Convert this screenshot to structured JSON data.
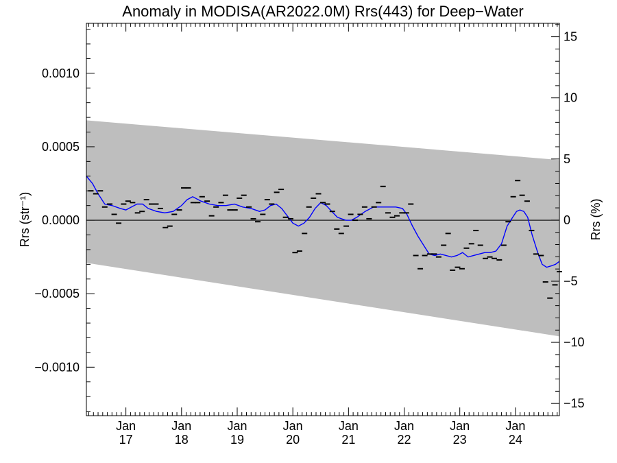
{
  "chart_data": {
    "type": "scatter",
    "title": "Anomaly in MODISA(AR2022.0M) Rrs(443) for Deep−Water",
    "ylabel_left": "Rrs (str⁻¹)",
    "ylabel_right": "Rrs (%)",
    "xlabel": "",
    "x_ticks": [
      {
        "month": "Jan",
        "year": "17",
        "x": 2017.0
      },
      {
        "month": "Jan",
        "year": "18",
        "x": 2018.0
      },
      {
        "month": "Jan",
        "year": "19",
        "x": 2019.0
      },
      {
        "month": "Jan",
        "year": "20",
        "x": 2020.0
      },
      {
        "month": "Jan",
        "year": "21",
        "x": 2021.0
      },
      {
        "month": "Jan",
        "year": "22",
        "x": 2022.0
      },
      {
        "month": "Jan",
        "year": "23",
        "x": 2023.0
      },
      {
        "month": "Jan",
        "year": "24",
        "x": 2024.0
      }
    ],
    "xlim": [
      2016.29,
      2024.79
    ],
    "ylim_left": [
      -0.00133,
      0.00134
    ],
    "ylim_right": [
      -16.0,
      16.1
    ],
    "left_ticks": [
      {
        "value": 0.001,
        "label": "0.0010"
      },
      {
        "value": 0.0005,
        "label": "0.0005"
      },
      {
        "value": 0.0,
        "label": "0.0000"
      },
      {
        "value": -0.0005,
        "label": "−0.0005"
      },
      {
        "value": -0.001,
        "label": "−0.0010"
      }
    ],
    "right_ticks": [
      {
        "value": 15,
        "label": "15"
      },
      {
        "value": 10,
        "label": "10"
      },
      {
        "value": 5,
        "label": "5"
      },
      {
        "value": 0,
        "label": "0"
      },
      {
        "value": -5,
        "label": "−5"
      },
      {
        "value": -10,
        "label": "−10"
      },
      {
        "value": -15,
        "label": "−15"
      }
    ],
    "band": {
      "upper": [
        [
          2016.29,
          0.00068
        ],
        [
          2024.79,
          0.00041
        ]
      ],
      "lower": [
        [
          2016.29,
          -0.00029
        ],
        [
          2024.79,
          -0.00079
        ]
      ],
      "color": "#bebebe"
    },
    "zero_line": 0.0,
    "monthly_points": {
      "name": "",
      "color": "#000000",
      "points": [
        [
          2016.37,
          0.0002
        ],
        [
          2016.46,
          0.00018
        ],
        [
          2016.54,
          0.0002
        ],
        [
          2016.62,
          9e-05
        ],
        [
          2016.71,
          0.00011
        ],
        [
          2016.79,
          4e-05
        ],
        [
          2016.87,
          -2e-05
        ],
        [
          2016.96,
          0.00011
        ],
        [
          2017.04,
          0.00013
        ],
        [
          2017.12,
          0.00012
        ],
        [
          2017.21,
          5e-05
        ],
        [
          2017.29,
          6e-05
        ],
        [
          2017.37,
          0.00014
        ],
        [
          2017.46,
          0.00011
        ],
        [
          2017.54,
          0.00011
        ],
        [
          2017.62,
          8e-05
        ],
        [
          2017.71,
          -5e-05
        ],
        [
          2017.79,
          -4e-05
        ],
        [
          2017.87,
          4e-05
        ],
        [
          2017.96,
          7e-05
        ],
        [
          2018.04,
          0.00022
        ],
        [
          2018.12,
          0.00022
        ],
        [
          2018.21,
          0.00012
        ],
        [
          2018.29,
          0.00012
        ],
        [
          2018.37,
          0.00016
        ],
        [
          2018.46,
          0.00013
        ],
        [
          2018.54,
          3e-05
        ],
        [
          2018.62,
          9e-05
        ],
        [
          2018.71,
          0.00012
        ],
        [
          2018.79,
          0.00017
        ],
        [
          2018.87,
          7e-05
        ],
        [
          2018.96,
          7e-05
        ],
        [
          2019.04,
          0.00015
        ],
        [
          2019.12,
          0.00017
        ],
        [
          2019.21,
          9e-05
        ],
        [
          2019.29,
          1e-05
        ],
        [
          2019.37,
          -1e-05
        ],
        [
          2019.46,
          4e-05
        ],
        [
          2019.54,
          0.00014
        ],
        [
          2019.62,
          0.00011
        ],
        [
          2019.71,
          0.00019
        ],
        [
          2019.79,
          0.00021
        ],
        [
          2019.87,
          2e-05
        ],
        [
          2019.96,
          1e-05
        ],
        [
          2020.04,
          -0.00022
        ],
        [
          2020.12,
          -0.00021
        ],
        [
          2020.21,
          -9e-05
        ],
        [
          2020.29,
          9e-05
        ],
        [
          2020.37,
          0.00015
        ],
        [
          2020.46,
          0.00018
        ],
        [
          2020.54,
          0.00012
        ],
        [
          2020.62,
          0.00011
        ],
        [
          2020.71,
          6e-05
        ],
        [
          2020.79,
          -6e-05
        ],
        [
          2020.87,
          -9e-05
        ],
        [
          2020.96,
          -4e-05
        ],
        [
          2021.04,
          4e-05
        ],
        [
          2021.12,
          0.0
        ],
        [
          2021.21,
          4e-05
        ],
        [
          2021.29,
          9e-05
        ],
        [
          2021.37,
          1e-05
        ],
        [
          2021.46,
          9e-05
        ],
        [
          2021.54,
          0.00012
        ],
        [
          2021.62,
          0.00023
        ],
        [
          2021.71,
          5e-05
        ],
        [
          2021.79,
          2e-05
        ],
        [
          2021.87,
          3e-05
        ],
        [
          2021.96,
          5e-05
        ],
        [
          2022.04,
          5e-05
        ],
        [
          2022.12,
          0.00011
        ],
        [
          2022.21,
          -0.00024
        ],
        [
          2022.29,
          -0.00033
        ],
        [
          2022.37,
          -0.00024
        ],
        [
          2022.46,
          -0.00023
        ],
        [
          2022.54,
          -0.00023
        ],
        [
          2022.62,
          -0.00025
        ],
        [
          2022.71,
          -0.00017
        ],
        [
          2022.79,
          -9e-05
        ],
        [
          2022.87,
          -0.00034
        ],
        [
          2022.96,
          -0.00032
        ],
        [
          2023.04,
          -0.00033
        ],
        [
          2023.12,
          -0.00019
        ],
        [
          2023.21,
          -0.00016
        ],
        [
          2023.29,
          -7e-05
        ],
        [
          2023.37,
          -0.00017
        ],
        [
          2023.46,
          -0.00026
        ],
        [
          2023.54,
          -0.00025
        ],
        [
          2023.62,
          -0.00026
        ],
        [
          2023.71,
          -0.00027
        ],
        [
          2023.79,
          -0.00017
        ],
        [
          2023.87,
          -1e-05
        ],
        [
          2023.96,
          0.00016
        ],
        [
          2024.04,
          0.00027
        ],
        [
          2024.12,
          0.00017
        ],
        [
          2024.21,
          0.00013
        ],
        [
          2024.29,
          -7e-05
        ],
        [
          2024.37,
          -0.00023
        ],
        [
          2024.46,
          -0.00024
        ],
        [
          2024.54,
          -0.00042
        ],
        [
          2024.62,
          -0.00053
        ],
        [
          2024.71,
          -0.00044
        ],
        [
          2024.79,
          -0.00035
        ]
      ]
    },
    "smoothed_line": {
      "name": "",
      "color": "#0000ff",
      "points": [
        [
          2016.29,
          0.0003
        ],
        [
          2016.4,
          0.00025
        ],
        [
          2016.5,
          0.00018
        ],
        [
          2016.62,
          0.00011
        ],
        [
          2016.75,
          0.0001
        ],
        [
          2016.9,
          8e-05
        ],
        [
          2017.0,
          7e-05
        ],
        [
          2017.1,
          9e-05
        ],
        [
          2017.2,
          0.00011
        ],
        [
          2017.3,
          0.00011
        ],
        [
          2017.4,
          8e-05
        ],
        [
          2017.55,
          6e-05
        ],
        [
          2017.7,
          5e-05
        ],
        [
          2017.85,
          6e-05
        ],
        [
          2018.0,
          0.0001
        ],
        [
          2018.1,
          0.00014
        ],
        [
          2018.2,
          0.00016
        ],
        [
          2018.35,
          0.00013
        ],
        [
          2018.5,
          0.00011
        ],
        [
          2018.65,
          0.0001
        ],
        [
          2018.8,
          0.0001
        ],
        [
          2018.95,
          0.00011
        ],
        [
          2019.1,
          9e-05
        ],
        [
          2019.25,
          8e-05
        ],
        [
          2019.4,
          6e-05
        ],
        [
          2019.5,
          7e-05
        ],
        [
          2019.6,
          0.0001
        ],
        [
          2019.7,
          0.00011
        ],
        [
          2019.8,
          8e-05
        ],
        [
          2019.9,
          3e-05
        ],
        [
          2020.0,
          -2e-05
        ],
        [
          2020.1,
          -4e-05
        ],
        [
          2020.2,
          -2e-05
        ],
        [
          2020.3,
          2e-05
        ],
        [
          2020.4,
          8e-05
        ],
        [
          2020.5,
          0.00012
        ],
        [
          2020.6,
          0.0001
        ],
        [
          2020.7,
          6e-05
        ],
        [
          2020.8,
          2e-05
        ],
        [
          2020.95,
          0.0
        ],
        [
          2021.05,
          0.0
        ],
        [
          2021.15,
          2e-05
        ],
        [
          2021.3,
          6e-05
        ],
        [
          2021.45,
          9e-05
        ],
        [
          2021.6,
          9e-05
        ],
        [
          2021.75,
          9e-05
        ],
        [
          2021.85,
          9e-05
        ],
        [
          2021.97,
          8e-05
        ],
        [
          2022.05,
          4e-05
        ],
        [
          2022.15,
          -4e-05
        ],
        [
          2022.25,
          -0.00011
        ],
        [
          2022.35,
          -0.00017
        ],
        [
          2022.45,
          -0.00023
        ],
        [
          2022.55,
          -0.00024
        ],
        [
          2022.65,
          -0.00023
        ],
        [
          2022.75,
          -0.00024
        ],
        [
          2022.85,
          -0.00025
        ],
        [
          2022.95,
          -0.00024
        ],
        [
          2023.05,
          -0.00022
        ],
        [
          2023.15,
          -0.00025
        ],
        [
          2023.25,
          -0.00024
        ],
        [
          2023.35,
          -0.00023
        ],
        [
          2023.45,
          -0.00022
        ],
        [
          2023.55,
          -0.00022
        ],
        [
          2023.65,
          -0.00021
        ],
        [
          2023.75,
          -0.00016
        ],
        [
          2023.85,
          -4e-05
        ],
        [
          2023.95,
          2e-05
        ],
        [
          2024.02,
          6e-05
        ],
        [
          2024.08,
          7e-05
        ],
        [
          2024.15,
          6e-05
        ],
        [
          2024.22,
          2e-05
        ],
        [
          2024.3,
          -0.0001
        ],
        [
          2024.4,
          -0.00022
        ],
        [
          2024.48,
          -0.0003
        ],
        [
          2024.56,
          -0.00032
        ],
        [
          2024.65,
          -0.00031
        ],
        [
          2024.72,
          -0.0003
        ],
        [
          2024.79,
          -0.00028
        ]
      ]
    },
    "grid": false,
    "legend": "none"
  }
}
